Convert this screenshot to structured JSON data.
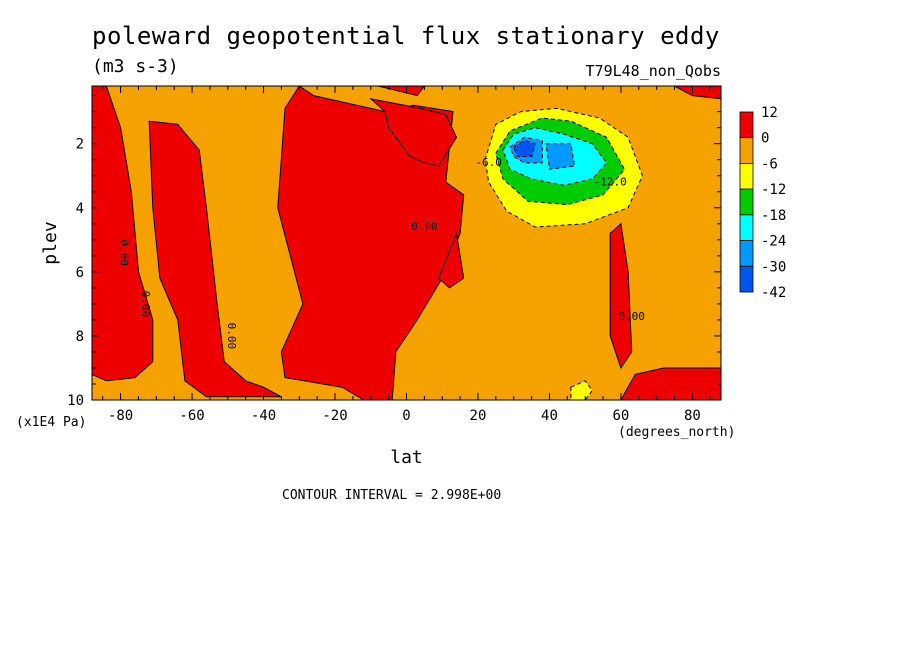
{
  "header": {
    "title": "poleward geopotential flux stationary eddy",
    "units": "(m3 s-3)",
    "run_name": "T79L48_non_Qobs",
    "contour_note": "CONTOUR INTERVAL = 2.998E+00",
    "y_scale_note": "(x1E4 Pa)",
    "x_unit": "(degrees_north)"
  },
  "colors": {
    "c12": "#ee0000",
    "c0": "#f5a100",
    "cm6": "#ffff00",
    "cm12": "#00cc00",
    "cm18": "#00ffff",
    "cm24": "#0099ff",
    "cm30": "#0055ee",
    "cm42": "#0022cc"
  },
  "chart_data": {
    "type": "heatmap",
    "xlabel": "lat",
    "ylabel": "plev",
    "x_ticks": [
      "-80",
      "-60",
      "-40",
      "-20",
      "0",
      "20",
      "40",
      "60",
      "80"
    ],
    "x_tick_values": [
      -80,
      -60,
      -40,
      -20,
      0,
      20,
      40,
      60,
      80
    ],
    "y_ticks": [
      "2",
      "4",
      "6",
      "8",
      "10"
    ],
    "y_tick_values": [
      2,
      4,
      6,
      8,
      10
    ],
    "xlim": [
      -88,
      88
    ],
    "ylim": [
      10,
      0.2
    ],
    "colorbar": {
      "labels": [
        "12",
        "0",
        "-6",
        "-12",
        "-18",
        "-24",
        "-30",
        "-42"
      ],
      "levels": [
        12,
        0,
        -6,
        -12,
        -18,
        -24,
        -30,
        -42
      ]
    },
    "contour_labels": [
      {
        "text": "0.00",
        "lat": -80,
        "plev": 5.4
      },
      {
        "text": "0.00",
        "lat": -74,
        "plev": 7.0
      },
      {
        "text": "0.00",
        "lat": -50,
        "plev": 8.0
      },
      {
        "text": "0.00",
        "lat": 5,
        "plev": 4.7
      },
      {
        "text": "0.00",
        "lat": 63,
        "plev": 7.5
      },
      {
        "text": "-6.0",
        "lat": 23,
        "plev": 2.7
      },
      {
        "text": "-12.0",
        "lat": 57,
        "plev": 3.3
      }
    ],
    "regions": [
      {
        "value_class": "0",
        "desc": "background",
        "points": [
          [
            -88,
            0.2
          ],
          [
            88,
            0.2
          ],
          [
            88,
            10
          ],
          [
            -88,
            10
          ]
        ]
      },
      {
        "value_class": "12",
        "desc": "south polar column",
        "points": [
          [
            -88,
            0.2
          ],
          [
            -84,
            0.2
          ],
          [
            -80,
            1.5
          ],
          [
            -77,
            3.5
          ],
          [
            -75,
            6.0
          ],
          [
            -71,
            7.5
          ],
          [
            -71,
            8.8
          ],
          [
            -76,
            9.3
          ],
          [
            -84,
            9.4
          ],
          [
            -88,
            9.2
          ]
        ]
      },
      {
        "value_class": "12",
        "desc": "southern midlatitude column",
        "points": [
          [
            -72,
            1.3
          ],
          [
            -64,
            1.4
          ],
          [
            -58,
            2.2
          ],
          [
            -56,
            4.0
          ],
          [
            -53,
            7.0
          ],
          [
            -51,
            8.8
          ],
          [
            -45,
            9.4
          ],
          [
            -40,
            9.6
          ],
          [
            -35,
            9.9
          ],
          [
            -56,
            9.9
          ],
          [
            -62,
            9.4
          ],
          [
            -64,
            7.5
          ],
          [
            -69,
            6.2
          ],
          [
            -71,
            4.0
          ]
        ]
      },
      {
        "value_class": "12",
        "desc": "equatorial column",
        "points": [
          [
            -30,
            0.2
          ],
          [
            -34,
            0.9
          ],
          [
            -36,
            4.0
          ],
          [
            -29,
            7.0
          ],
          [
            -35,
            8.5
          ],
          [
            -34,
            9.3
          ],
          [
            -18,
            9.6
          ],
          [
            -12,
            10
          ],
          [
            -4,
            10
          ],
          [
            -3,
            8.5
          ],
          [
            3,
            7.5
          ],
          [
            10,
            6.2
          ],
          [
            15,
            4.8
          ],
          [
            16,
            3.6
          ],
          [
            11,
            3.2
          ],
          [
            13,
            1.0
          ],
          [
            2,
            0.8
          ],
          [
            -6,
            1.0
          ],
          [
            -18,
            0.7
          ],
          [
            -26,
            0.5
          ]
        ]
      },
      {
        "value_class": "12",
        "desc": "upper tropical lobe",
        "points": [
          [
            -10,
            0.6
          ],
          [
            -6,
            1.0
          ],
          [
            -5,
            1.5
          ],
          [
            1,
            2.4
          ],
          [
            5,
            2.6
          ],
          [
            9,
            2.7
          ],
          [
            14,
            1.8
          ],
          [
            11,
            1.1
          ],
          [
            4,
            0.9
          ]
        ]
      },
      {
        "value_class": "12",
        "desc": "tropical inclusion",
        "points": [
          [
            9,
            6.2
          ],
          [
            14,
            4.8
          ],
          [
            16,
            6.2
          ],
          [
            12,
            6.5
          ]
        ]
      },
      {
        "value_class": "12",
        "desc": "high latitude tongue",
        "points": [
          [
            57,
            4.8
          ],
          [
            60,
            4.5
          ],
          [
            62,
            6.0
          ],
          [
            63,
            8.5
          ],
          [
            60,
            9.0
          ],
          [
            57,
            8.0
          ]
        ]
      },
      {
        "value_class": "12",
        "desc": "north polar surface",
        "points": [
          [
            60,
            10
          ],
          [
            64,
            9.2
          ],
          [
            72,
            9.0
          ],
          [
            88,
            9.0
          ],
          [
            88,
            10
          ]
        ]
      },
      {
        "value_class": "12",
        "desc": "north pole top",
        "points": [
          [
            75,
            0.2
          ],
          [
            88,
            0.2
          ],
          [
            88,
            0.6
          ],
          [
            80,
            0.5
          ]
        ]
      },
      {
        "value_class": "12",
        "desc": "tropical top",
        "points": [
          [
            -8,
            0.2
          ],
          [
            5,
            0.2
          ],
          [
            3,
            0.5
          ]
        ]
      },
      {
        "value_class": "-6",
        "desc": "yellow band",
        "points": [
          [
            22,
            2.5
          ],
          [
            25,
            1.4
          ],
          [
            32,
            1.0
          ],
          [
            42,
            0.9
          ],
          [
            54,
            1.2
          ],
          [
            62,
            1.8
          ],
          [
            66,
            3.0
          ],
          [
            62,
            4.0
          ],
          [
            50,
            4.5
          ],
          [
            36,
            4.6
          ],
          [
            28,
            4.1
          ],
          [
            23,
            3.2
          ]
        ]
      },
      {
        "value_class": "-12",
        "desc": "green",
        "points": [
          [
            25,
            2.3
          ],
          [
            29,
            1.6
          ],
          [
            38,
            1.2
          ],
          [
            46,
            1.3
          ],
          [
            56,
            1.8
          ],
          [
            61,
            2.8
          ],
          [
            55,
            3.6
          ],
          [
            45,
            3.9
          ],
          [
            34,
            3.8
          ],
          [
            27,
            3.1
          ]
        ]
      },
      {
        "value_class": "-18",
        "desc": "cyan",
        "points": [
          [
            27,
            2.2
          ],
          [
            30,
            1.7
          ],
          [
            36,
            1.5
          ],
          [
            44,
            1.7
          ],
          [
            52,
            2.0
          ],
          [
            56,
            2.6
          ],
          [
            52,
            3.1
          ],
          [
            44,
            3.3
          ],
          [
            35,
            3.1
          ],
          [
            29,
            2.8
          ]
        ]
      },
      {
        "value_class": "-24",
        "desc": "light blue",
        "points": [
          [
            29,
            2.1
          ],
          [
            33,
            1.8
          ],
          [
            38,
            1.9
          ],
          [
            38,
            2.6
          ],
          [
            33,
            2.6
          ],
          [
            30,
            2.4
          ]
        ]
      },
      {
        "value_class": "-24",
        "desc": "light blue 2",
        "points": [
          [
            39,
            2.0
          ],
          [
            46,
            2.0
          ],
          [
            47,
            2.7
          ],
          [
            40,
            2.8
          ]
        ]
      },
      {
        "value_class": "-30",
        "desc": "core",
        "points": [
          [
            30,
            2.1
          ],
          [
            33,
            1.9
          ],
          [
            36,
            2.0
          ],
          [
            35,
            2.4
          ],
          [
            31,
            2.4
          ]
        ]
      },
      {
        "value_class": "-6",
        "desc": "small yellow patch",
        "points": [
          [
            46,
            9.6
          ],
          [
            50,
            9.4
          ],
          [
            52,
            9.7
          ],
          [
            50,
            10
          ],
          [
            46,
            10
          ]
        ]
      }
    ]
  }
}
